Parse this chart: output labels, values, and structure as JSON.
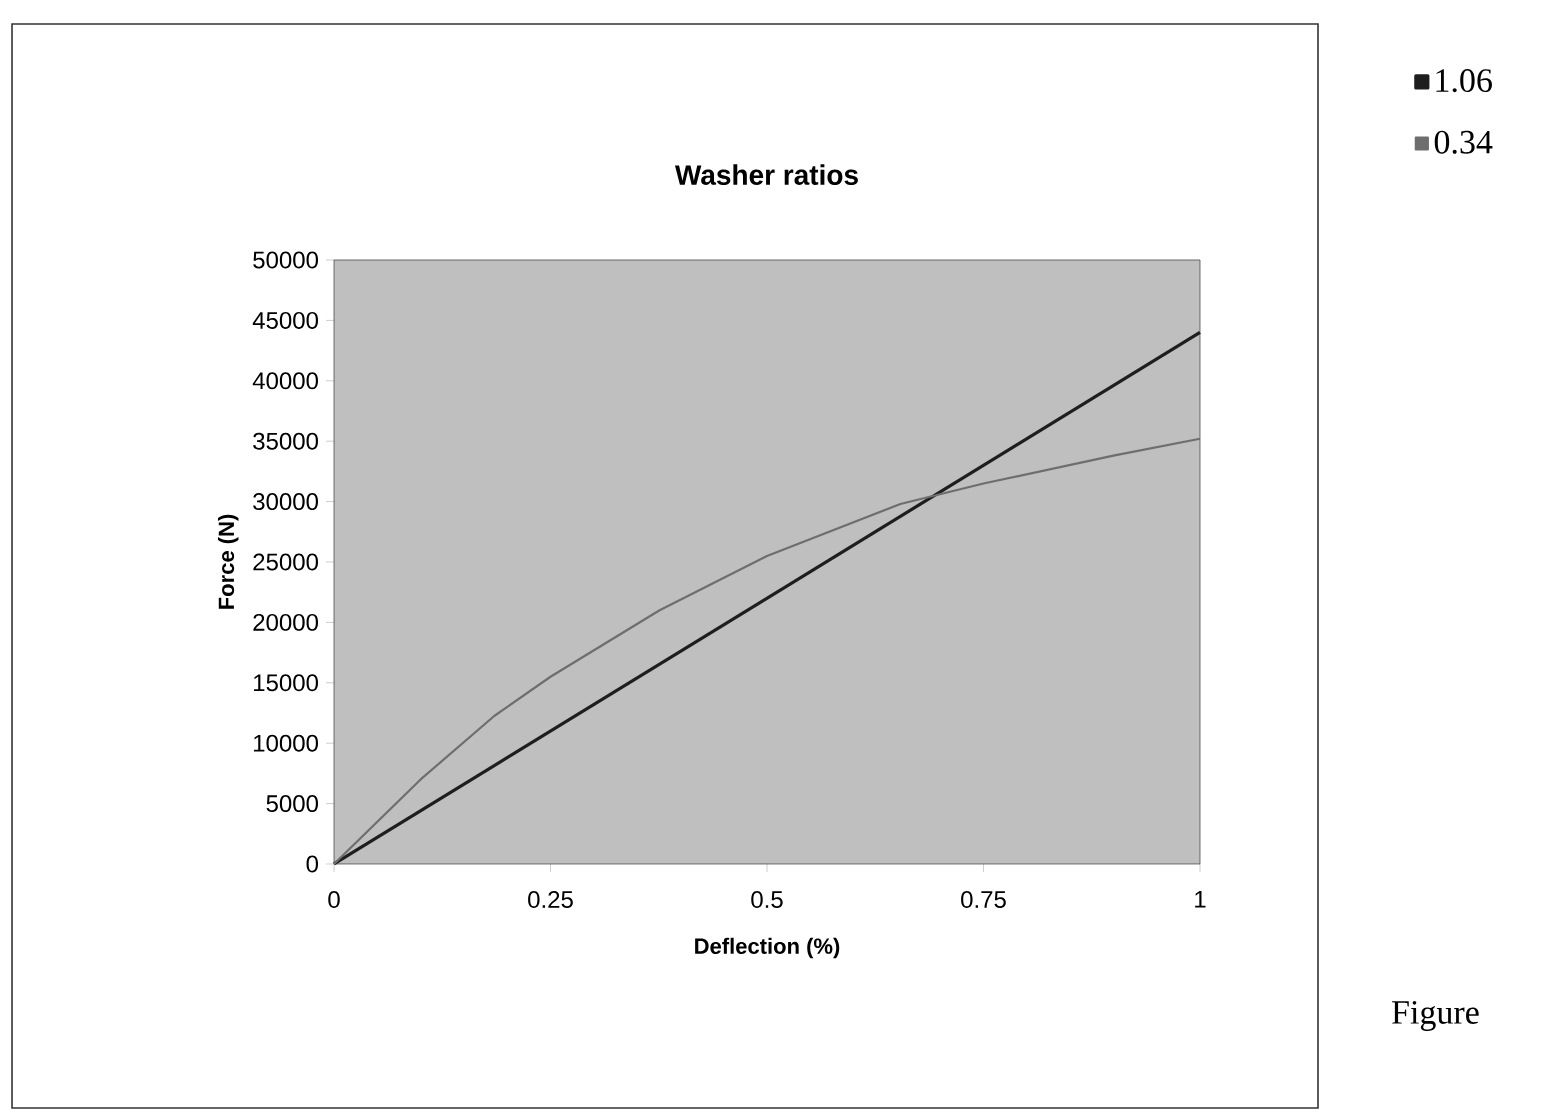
{
  "chart_data": {
    "type": "line",
    "title": "Washer ratios",
    "xlabel": "Deflection (%)",
    "ylabel": "Force (N)",
    "xlim": [
      0,
      1
    ],
    "ylim": [
      0,
      50000
    ],
    "xticks": [
      0,
      0.25,
      0.5,
      0.75,
      1
    ],
    "yticks": [
      0,
      5000,
      10000,
      15000,
      20000,
      25000,
      30000,
      35000,
      40000,
      45000,
      50000
    ],
    "series": [
      {
        "name": "1.06",
        "color": "#1e1e1e",
        "x": [
          0,
          1
        ],
        "values": [
          0,
          44000
        ]
      },
      {
        "name": "0.34",
        "color": "#6e6e6e",
        "x": [
          0,
          0.1,
          0.185,
          0.25,
          0.376,
          0.5,
          0.654,
          0.75,
          0.9,
          1
        ],
        "values": [
          0,
          7000,
          12250,
          15500,
          21000,
          25500,
          29800,
          31500,
          33800,
          35200
        ]
      }
    ],
    "legend": "top right",
    "grid": false,
    "annotations": [
      "Figure"
    ]
  }
}
